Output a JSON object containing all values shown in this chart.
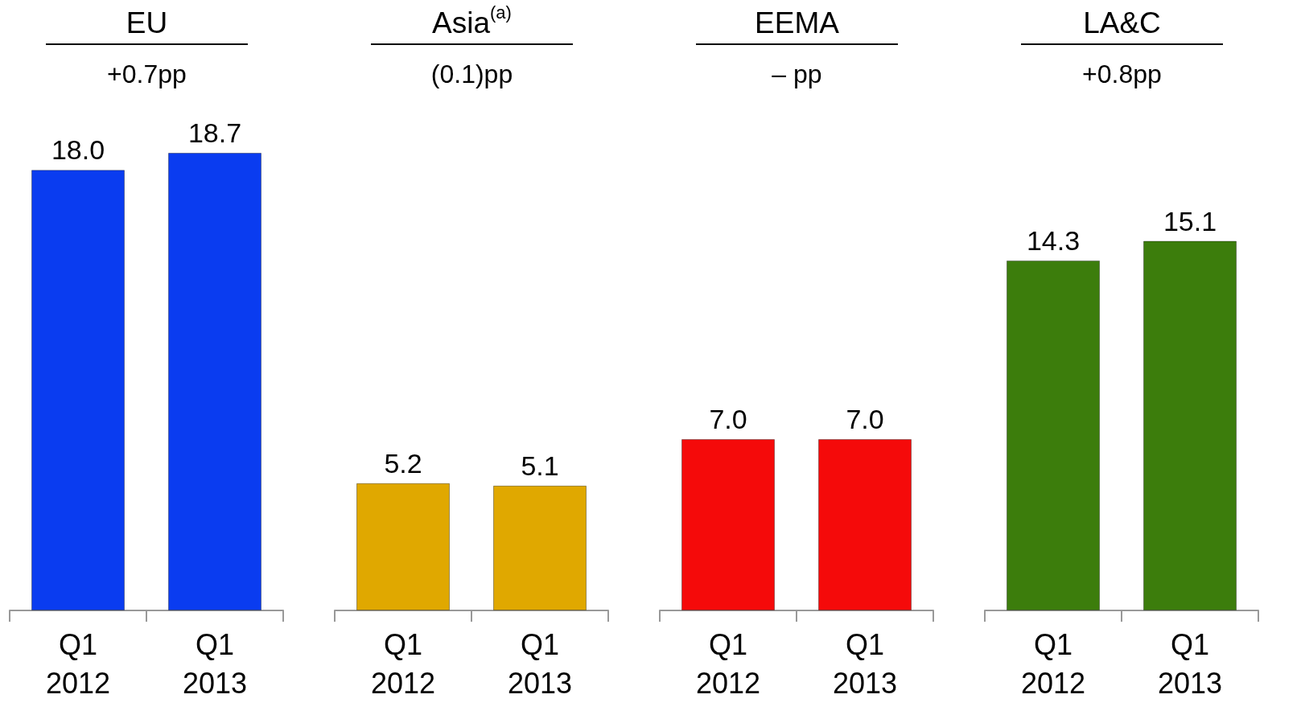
{
  "chart_data": [
    {
      "type": "bar",
      "title": "EU",
      "subtitle": "+0.7pp",
      "categories": [
        "Q1\n2012",
        "Q1\n2013"
      ],
      "values": [
        18.0,
        18.7
      ],
      "value_labels": [
        "18.0",
        "18.7"
      ],
      "color": "#0a3cf0",
      "tick_labels": "x"
    },
    {
      "type": "bar",
      "title": "Asia$^{(a)}$",
      "subtitle": "(0.1)pp",
      "categories": [
        "Q1\n2012",
        "Q1\n2013"
      ],
      "values": [
        5.2,
        5.1
      ],
      "value_labels": [
        "5.2",
        "5.1"
      ],
      "color": "#e0a800",
      "tick_labels": "x"
    },
    {
      "type": "bar",
      "title": "EEMA",
      "subtitle": "– pp",
      "categories": [
        "Q1\n2012",
        "Q1\n2013"
      ],
      "values": [
        7.0,
        7.0
      ],
      "value_labels": [
        "7.0",
        "7.0"
      ],
      "color": "#f50a0a",
      "tick_labels": "x"
    },
    {
      "type": "bar",
      "title": "LA&C",
      "subtitle": "+0.8pp",
      "categories": [
        "Q1\n2012",
        "Q1\n2013"
      ],
      "values": [
        14.3,
        15.1
      ],
      "value_labels": [
        "14.3",
        "15.1"
      ],
      "color": "#3c7d0c",
      "tick_labels": "x"
    }
  ]
}
